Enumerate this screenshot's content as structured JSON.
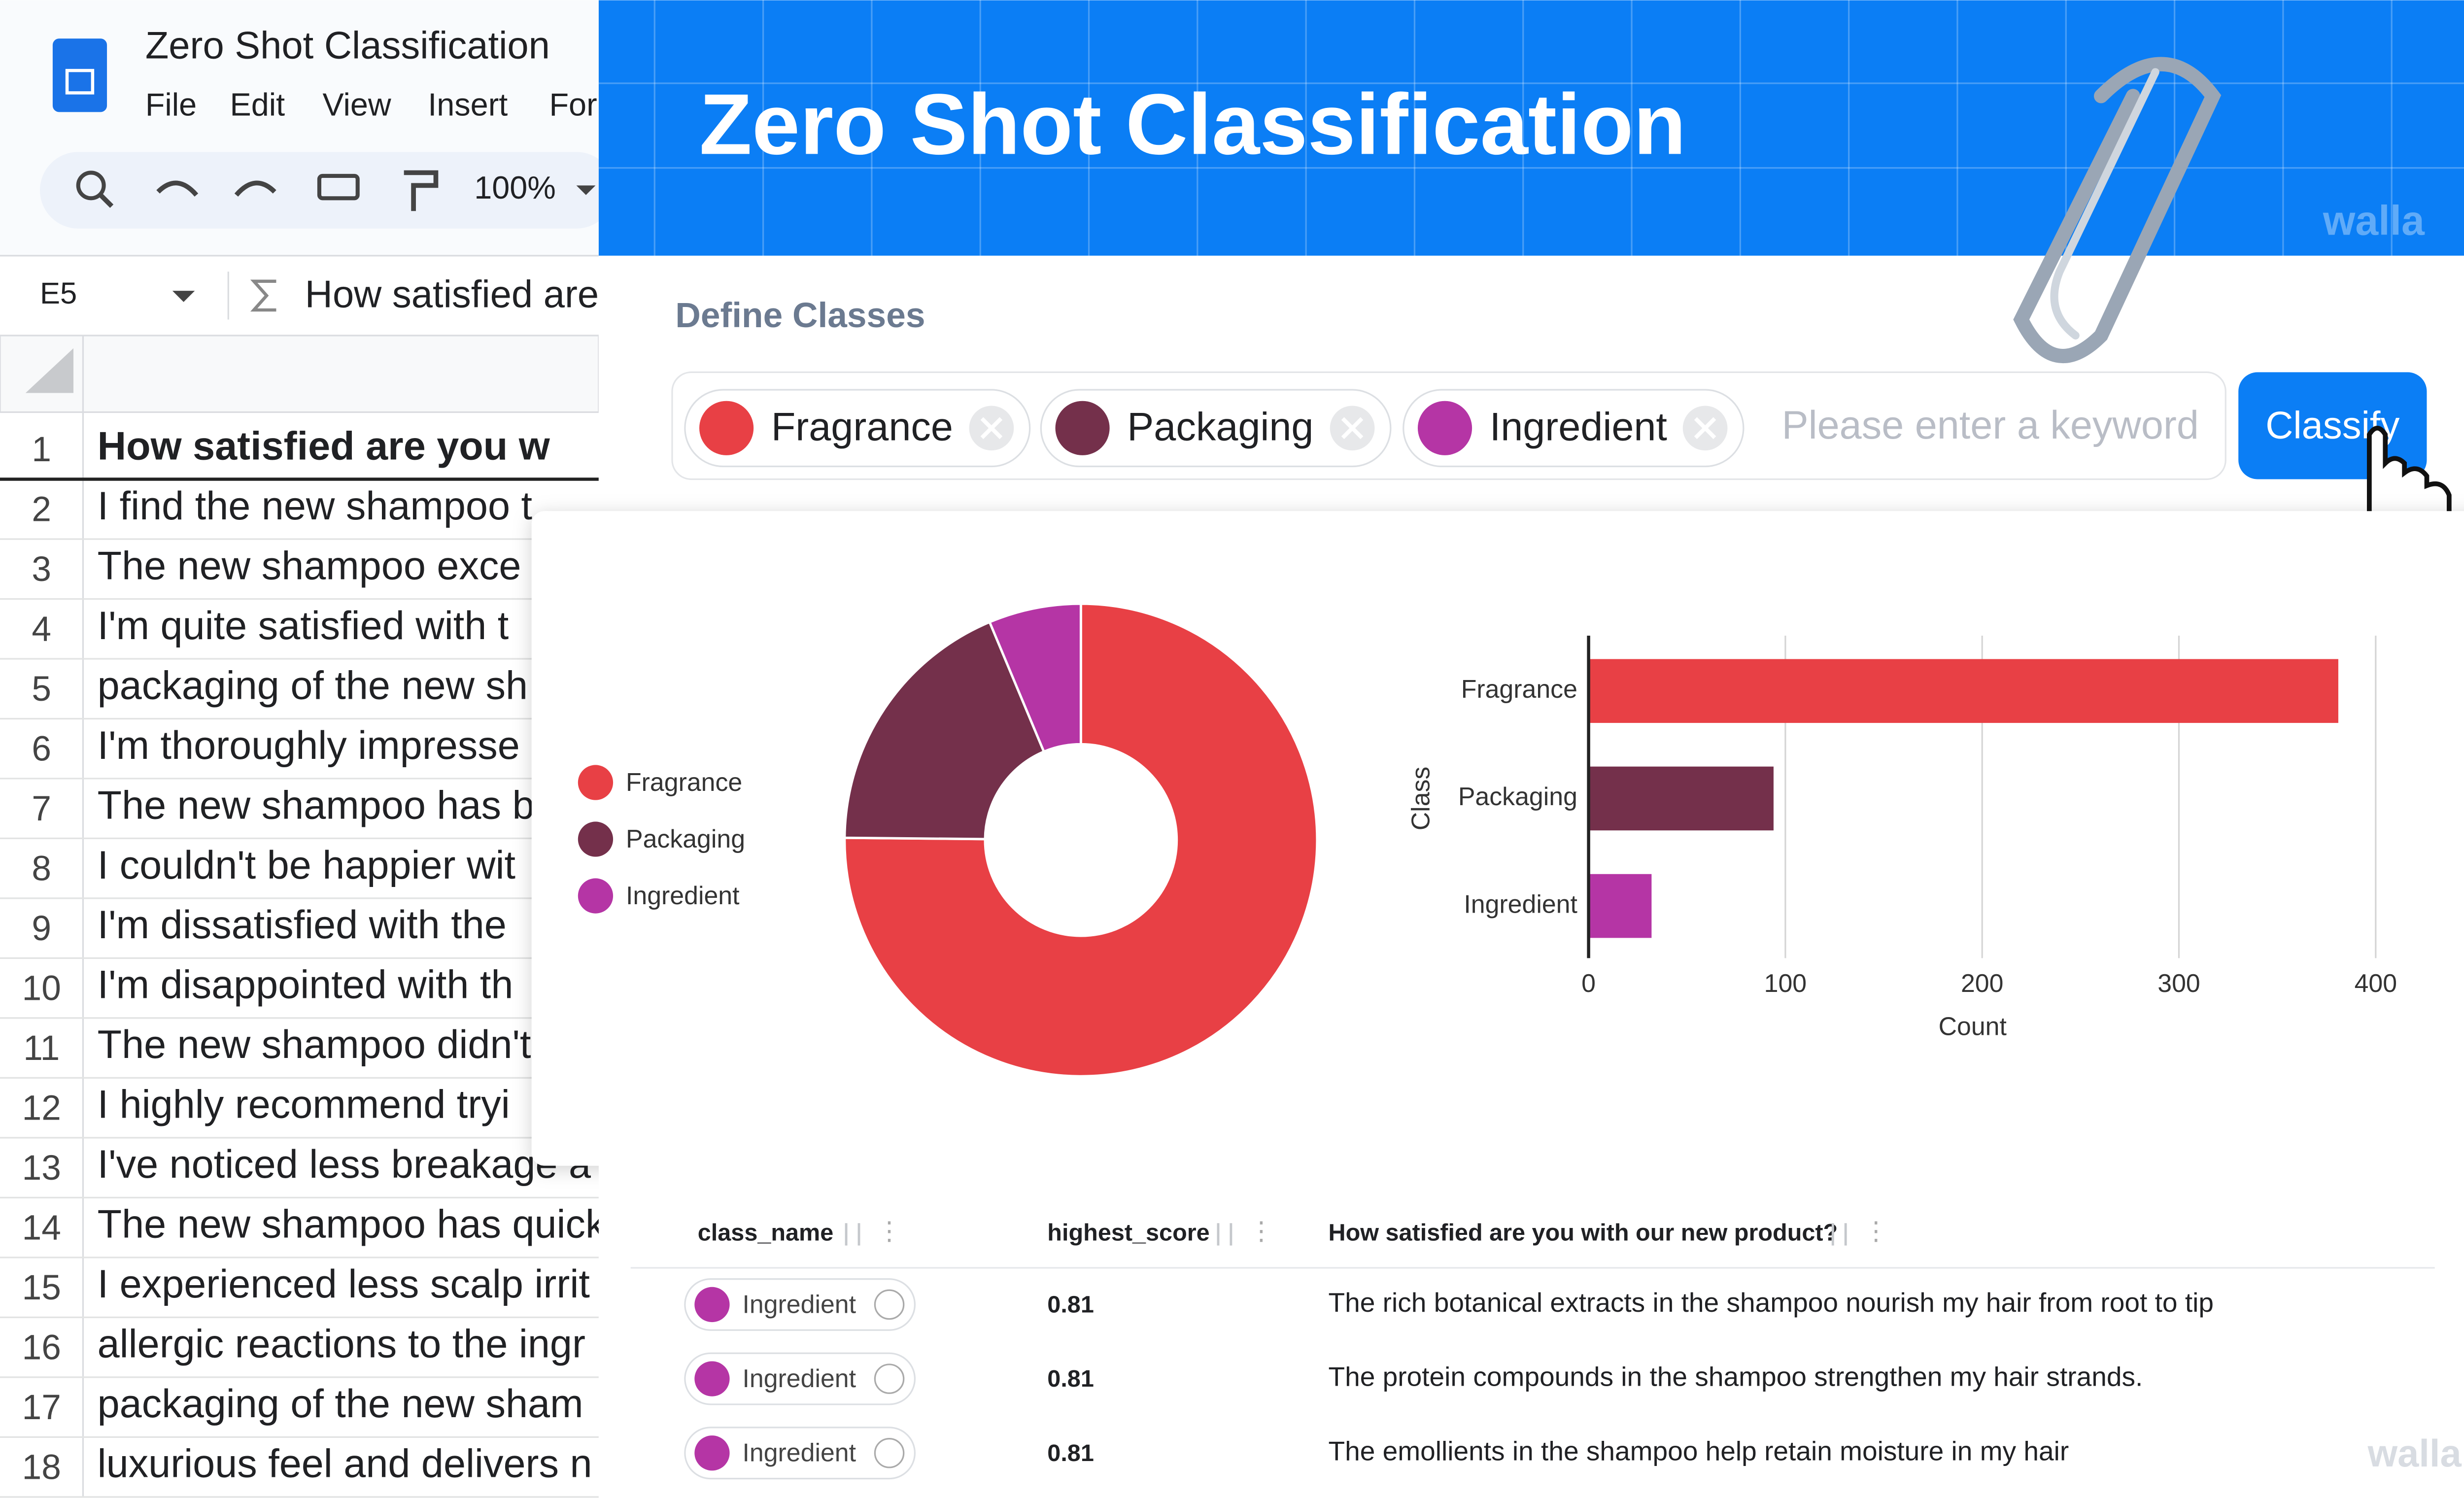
{
  "spreadsheet": {
    "doc_title": "Zero Shot Classification",
    "menu": [
      "File",
      "Edit",
      "View",
      "Insert",
      "For"
    ],
    "zoom": "100%",
    "cell_ref": "E5",
    "formula": "How satisfied are",
    "row_numbers": [
      1,
      2,
      3,
      4,
      5,
      6,
      7,
      8,
      9,
      10,
      11,
      12,
      13,
      14,
      15,
      16,
      17,
      18
    ],
    "rows": [
      "How satisfied are you w",
      "I find the new shampoo t",
      "The new shampoo exce",
      "I'm quite satisfied with t",
      "packaging of the new sh",
      "I'm thoroughly impresse",
      "The new shampoo has b",
      "I couldn't be happier wit",
      "I'm dissatisfied with the",
      "I'm disappointed with th",
      "The new shampoo didn't",
      "I highly recommend tryi",
      "I've noticed less breakage a",
      "The new shampoo has quick",
      "I experienced less scalp irrit",
      "allergic reactions to the ingr",
      "packaging of the new sham",
      "luxurious feel and delivers n"
    ]
  },
  "app": {
    "title": "Zero Shot Classification",
    "section": "Define Classes",
    "classes": [
      {
        "label": "Fragrance",
        "color": "#e84045"
      },
      {
        "label": "Packaging",
        "color": "#74304b"
      },
      {
        "label": "Ingredient",
        "color": "#b535a5"
      }
    ],
    "placeholder": "Please enter a keyword",
    "button": "Classify",
    "watermark": "walla"
  },
  "chart_data": [
    {
      "type": "pie",
      "donut": true,
      "categories": [
        "Fragrance",
        "Packaging",
        "Ingredient"
      ],
      "values": [
        381,
        94,
        32
      ],
      "colors": [
        "#e84045",
        "#74304b",
        "#b535a5"
      ],
      "legend": "left"
    },
    {
      "type": "bar",
      "orientation": "horizontal",
      "categories": [
        "Fragrance",
        "Packaging",
        "Ingredient"
      ],
      "values": [
        381,
        94,
        32
      ],
      "colors": [
        "#e84045",
        "#74304b",
        "#b535a5"
      ],
      "xlim": [
        0,
        400
      ],
      "xticks": [
        0,
        100,
        200,
        300,
        400
      ],
      "xlabel": "Count",
      "ylabel": "Class",
      "grid": true
    }
  ],
  "table": {
    "columns": [
      "class_name",
      "highest_score",
      "How satisfied are you with our new product?"
    ],
    "rows": [
      [
        "Ingredient",
        0.81,
        "The rich botanical extracts in the shampoo nourish my hair from root to tip"
      ],
      [
        "Ingredient",
        0.81,
        "The protein compounds in the shampoo strengthen my hair strands."
      ],
      [
        "Ingredient",
        0.81,
        "The emollients in the shampoo help retain moisture in my hair"
      ]
    ]
  }
}
